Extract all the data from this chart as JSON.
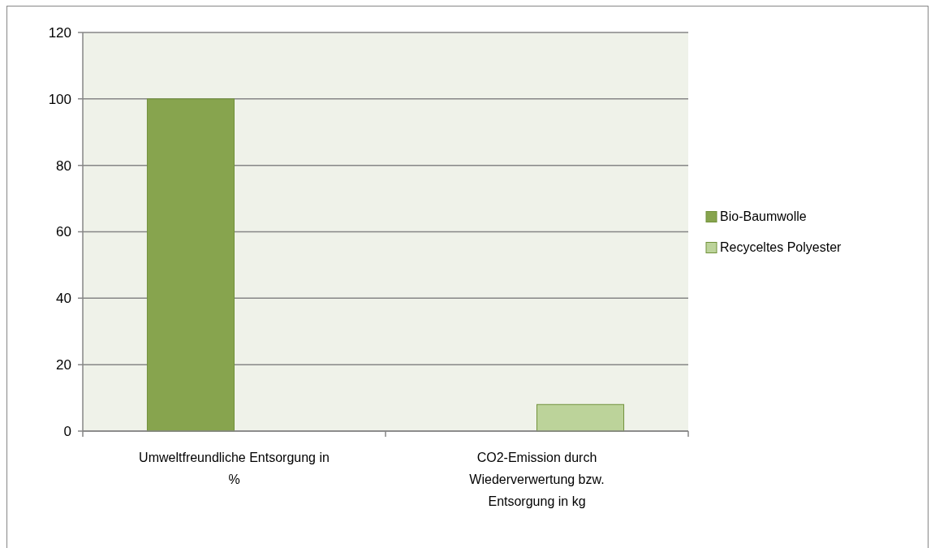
{
  "chart_data": {
    "type": "bar",
    "categories": [
      "Umweltfreundliche Entsorgung in %",
      "CO2-Emission durch Wiederverwertung bzw. Entsorgung in kg"
    ],
    "series": [
      {
        "name": "Bio-Baumwolle",
        "color": "#87a44e",
        "values": [
          100,
          null
        ]
      },
      {
        "name": "Recyceltes Polyester",
        "color": "#bcd39a",
        "values": [
          null,
          8
        ]
      }
    ],
    "ylim": [
      0,
      120
    ],
    "yticks": [
      0,
      20,
      40,
      60,
      80,
      100,
      120
    ],
    "grid": "y",
    "legend": "right"
  }
}
